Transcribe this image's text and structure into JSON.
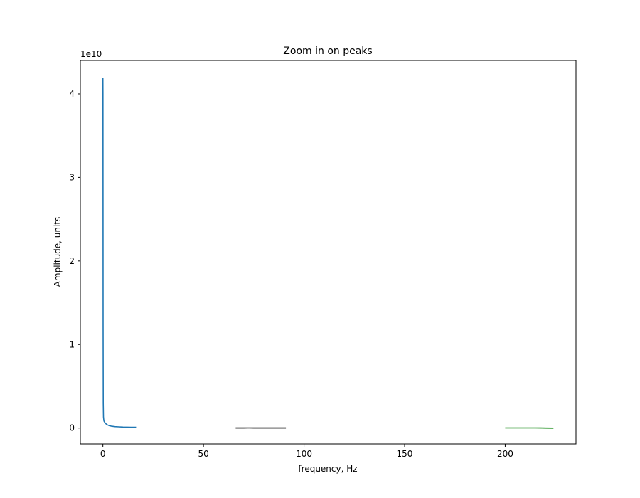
{
  "chart_data": {
    "type": "line",
    "title": "Zoom in on peaks",
    "xlabel": "frequency, Hz",
    "ylabel": "Amplitude, units",
    "y_offset_label": "1e10",
    "xlim": [
      -11.2,
      235.2
    ],
    "ylim": [
      -1900000000.0,
      44000000000.0
    ],
    "x_ticks": [
      0,
      50,
      100,
      150,
      200
    ],
    "x_tick_labels": [
      "0",
      "50",
      "100",
      "150",
      "200"
    ],
    "y_ticks": [
      0,
      10000000000.0,
      20000000000.0,
      30000000000.0,
      40000000000.0
    ],
    "y_tick_labels": [
      "0",
      "1",
      "2",
      "3",
      "4"
    ],
    "grid": false,
    "series": [
      {
        "color": "#1f77b4",
        "x": [
          0.0,
          0.05,
          0.1,
          0.2,
          0.3,
          0.5,
          1,
          1.5,
          2,
          3,
          4,
          5,
          6,
          8,
          10,
          12,
          14,
          16.5
        ],
        "y": [
          41900000000.0,
          40000000000.0,
          12000000000.0,
          3000000000.0,
          1300000000.0,
          850000000.0,
          650000000.0,
          520000000.0,
          420000000.0,
          300000000.0,
          240000000.0,
          200000000.0,
          170000000.0,
          140000000.0,
          120000000.0,
          110000000.0,
          100000000.0,
          90000000.0
        ]
      },
      {
        "color": "#000000",
        "x": [
          66,
          70,
          72,
          73,
          75,
          80,
          85,
          91
        ],
        "y": [
          10000000.0,
          10000000.0,
          15000000.0,
          15000000.0,
          10000000.0,
          10000000.0,
          10000000.0,
          10000000.0
        ]
      },
      {
        "color": "#008000",
        "x": [
          200,
          205,
          210,
          215,
          218,
          220,
          224
        ],
        "y": [
          20000000.0,
          20000000.0,
          20000000.0,
          15000000.0,
          10000000.0,
          0.0,
          -10000000.0
        ]
      }
    ]
  }
}
